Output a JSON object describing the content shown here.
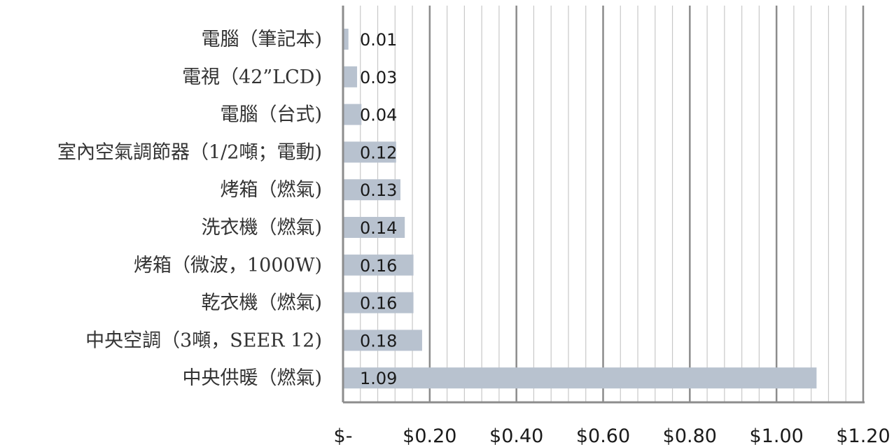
{
  "chart_data": {
    "type": "bar",
    "orientation": "horizontal",
    "categories": [
      "電腦（筆記本)",
      "電視（42”LCD)",
      "電腦（台式)",
      "室內空氣調節器（1/2噸；電動)",
      "烤箱（燃氣)",
      "洗衣機（燃氣)",
      "烤箱（微波，1000W)",
      "乾衣機（燃氣)",
      "中央空調（3噸，SEER 12)",
      "中央供暖（燃氣)"
    ],
    "values": [
      0.01,
      0.03,
      0.04,
      0.12,
      0.13,
      0.14,
      0.16,
      0.16,
      0.18,
      1.09
    ],
    "value_labels": [
      "0.01",
      "0.03",
      "0.04",
      "0.12",
      "0.13",
      "0.14",
      "0.16",
      "0.16",
      "0.18",
      "1.09"
    ],
    "xlim": [
      0,
      1.2
    ],
    "x_ticks": [
      0,
      0.2,
      0.4,
      0.6,
      0.8,
      1.0,
      1.2
    ],
    "x_tick_labels": [
      "$-",
      "$0.20",
      "$0.40",
      "$0.60",
      "$0.80",
      "$1.00",
      "$1.20"
    ],
    "x_minor_step": 0.04,
    "grid": true,
    "legend": "none",
    "title": "",
    "xlabel": "",
    "ylabel": "",
    "colors": {
      "bar": "#b8c2cf",
      "major_grid": "#8c8c8c",
      "minor_grid": "#c8c8c8",
      "axis": "#8c8c8c"
    }
  }
}
